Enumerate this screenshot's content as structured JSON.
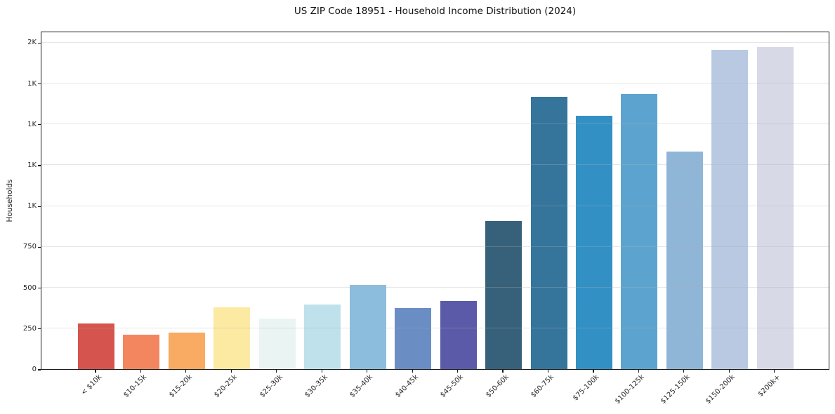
{
  "chart_data": {
    "type": "bar",
    "title": "US ZIP Code 18951 - Household Income Distribution (2024)",
    "xlabel": "",
    "ylabel": "Households",
    "legend": "none",
    "grid": "horizontal-gridlines-over-bars",
    "ylim": [
      0,
      2070
    ],
    "categories": [
      "< $10k",
      "$10-15k",
      "$15-20k",
      "$20-25k",
      "$25-30k",
      "$30-35k",
      "$35-40k",
      "$40-45k",
      "$45-50k",
      "$50-60k",
      "$60-75k",
      "$75-100k",
      "$100-125k",
      "$125-150k",
      "$150-200k",
      "$200k+"
    ],
    "values": [
      280,
      210,
      225,
      380,
      310,
      395,
      515,
      375,
      415,
      905,
      1665,
      1550,
      1685,
      1330,
      1955,
      1970
    ],
    "bar_colors": [
      "#d5544e",
      "#f4865f",
      "#f9aa63",
      "#fce9a2",
      "#e9f4f3",
      "#bee1eb",
      "#8cbddd",
      "#6a8dc4",
      "#5a5aa8",
      "#37617a",
      "#35759c",
      "#3390c5",
      "#5ca4cf",
      "#8fb5d7",
      "#b9c9e2",
      "#d7d9e7"
    ],
    "yticks": [
      {
        "value": 0,
        "label": "0"
      },
      {
        "value": 250,
        "label": "250"
      },
      {
        "value": 500,
        "label": "500"
      },
      {
        "value": 750,
        "label": "750"
      },
      {
        "value": 1000,
        "label": "1K"
      },
      {
        "value": 1250,
        "label": "1K"
      },
      {
        "value": 1500,
        "label": "1K"
      },
      {
        "value": 1750,
        "label": "1K"
      },
      {
        "value": 2000,
        "label": "2K"
      }
    ],
    "axis_color": "#1a1a1a",
    "gridline_color": "rgba(176,176,176,0.32)"
  }
}
